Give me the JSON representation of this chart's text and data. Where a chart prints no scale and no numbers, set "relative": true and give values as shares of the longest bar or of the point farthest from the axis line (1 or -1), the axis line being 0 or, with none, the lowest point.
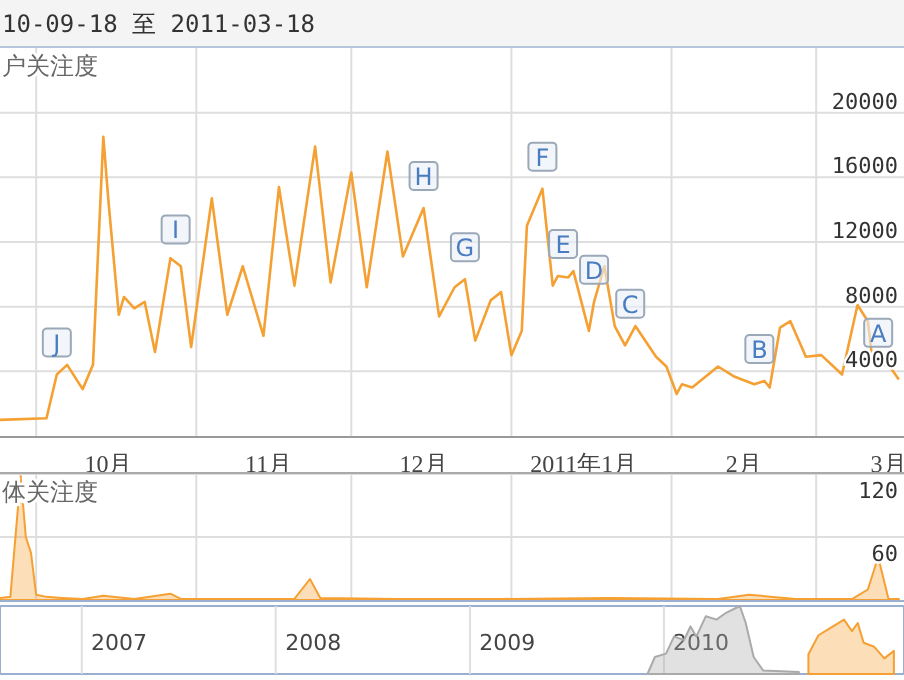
{
  "chart_data": [
    {
      "type": "line",
      "title": "10-09-18 至 2011-03-18",
      "ylabel": "户关注度",
      "color": "#f5a033",
      "x": [
        "2010-09-24",
        "2010-10-03",
        "2010-10-05",
        "2010-10-07",
        "2010-10-10",
        "2010-10-12",
        "2010-10-14",
        "2010-10-15",
        "2010-10-17",
        "2010-10-18",
        "2010-10-20",
        "2010-10-22",
        "2010-10-24",
        "2010-10-27",
        "2010-10-29",
        "2010-10-31",
        "2010-11-04",
        "2010-11-07",
        "2010-11-10",
        "2010-11-14",
        "2010-11-17",
        "2010-11-20",
        "2010-11-24",
        "2010-11-27",
        "2010-12-01",
        "2010-12-04",
        "2010-12-08",
        "2010-12-11",
        "2010-12-15",
        "2010-12-18",
        "2010-12-21",
        "2010-12-23",
        "2010-12-25",
        "2010-12-28",
        "2010-12-30",
        "2011-01-01",
        "2011-01-03",
        "2011-01-04",
        "2011-01-07",
        "2011-01-09",
        "2011-01-10",
        "2011-01-12",
        "2011-01-13",
        "2011-01-16",
        "2011-01-17",
        "2011-01-19",
        "2011-01-21",
        "2011-01-23",
        "2011-01-25",
        "2011-01-29",
        "2011-01-31",
        "2011-02-02",
        "2011-02-03",
        "2011-02-05",
        "2011-02-10",
        "2011-02-13",
        "2011-02-17",
        "2011-02-19",
        "2011-02-20",
        "2011-02-22",
        "2011-02-24",
        "2011-02-27",
        "2011-03-02",
        "2011-03-06",
        "2011-03-09",
        "2011-03-11",
        "2011-03-12",
        "2011-03-15",
        "2011-03-17"
      ],
      "values": [
        1000,
        1100,
        3800,
        4400,
        2900,
        4400,
        18500,
        14500,
        7500,
        8600,
        7900,
        8300,
        5200,
        11000,
        10500,
        5500,
        14700,
        7500,
        10500,
        6200,
        15400,
        9300,
        17900,
        9500,
        16300,
        9200,
        17600,
        11100,
        14100,
        7400,
        9200,
        9700,
        5900,
        8400,
        8900,
        5000,
        6500,
        13000,
        15300,
        9300,
        9900,
        9800,
        10200,
        6500,
        8300,
        10500,
        6800,
        5600,
        6800,
        4900,
        4300,
        2600,
        3200,
        3000,
        4300,
        3700,
        3200,
        3400,
        3000,
        6700,
        7100,
        4900,
        5000,
        3800,
        8100,
        7100,
        4400,
        4400,
        3500
      ],
      "xlim": [
        "2010-09-24",
        "2011-03-18"
      ],
      "xticks": [
        {
          "value": "2010-10-01",
          "label": null
        },
        {
          "value": "2010-11-01",
          "label": null
        },
        {
          "value": "2010-12-01",
          "label": null
        },
        {
          "value": "2011-01-01",
          "label": null
        },
        {
          "value": "2011-02-01",
          "label": null
        },
        {
          "value": "2011-03-01",
          "label": null
        },
        {
          "value": "2010-10-15",
          "label": "10月"
        },
        {
          "value": "2010-11-15",
          "label": "11月"
        },
        {
          "value": "2010-12-15",
          "label": "12月"
        },
        {
          "value": "2011-01-15",
          "label": "2011年1月"
        },
        {
          "value": "2011-02-15",
          "label": "2月"
        },
        {
          "value": "2011-03-15",
          "label": "3月"
        }
      ],
      "ylim": [
        0,
        24000
      ],
      "yticks": [
        4000,
        8000,
        12000,
        16000,
        20000
      ],
      "grid": true,
      "annotations": [
        {
          "text": "J",
          "x": "2010-10-05",
          "y": 3800
        },
        {
          "text": "I",
          "x": "2010-10-28",
          "y": 10800
        },
        {
          "text": "H",
          "x": "2010-12-15",
          "y": 14100
        },
        {
          "text": "G",
          "x": "2010-12-23",
          "y": 9700
        },
        {
          "text": "F",
          "x": "2011-01-07",
          "y": 15300
        },
        {
          "text": "E",
          "x": "2011-01-11",
          "y": 9900
        },
        {
          "text": "D",
          "x": "2011-01-17",
          "y": 8300
        },
        {
          "text": "C",
          "x": "2011-01-24",
          "y": 6200
        },
        {
          "text": "B",
          "x": "2011-02-18",
          "y": 3400
        },
        {
          "text": "A",
          "x": "2011-03-13",
          "y": 4400
        }
      ]
    },
    {
      "type": "area",
      "ylabel": "体关注度",
      "color": "#f5a033",
      "x": [
        "2010-09-24",
        "2010-09-26",
        "2010-09-28",
        "2010-09-29",
        "2010-09-30",
        "2010-10-01",
        "2010-10-03",
        "2010-10-06",
        "2010-10-10",
        "2010-10-14",
        "2010-10-20",
        "2010-10-27",
        "2010-10-29",
        "2010-11-10",
        "2010-11-20",
        "2010-11-23",
        "2010-11-25",
        "2010-12-10",
        "2010-12-30",
        "2011-01-20",
        "2011-02-10",
        "2011-02-16",
        "2011-02-25",
        "2011-03-08",
        "2011-03-11",
        "2011-03-13",
        "2011-03-15",
        "2011-03-17"
      ],
      "values": [
        2,
        3,
        118,
        60,
        45,
        5,
        3,
        2,
        1,
        4,
        1,
        6,
        1,
        1,
        1,
        20,
        2,
        1,
        1,
        2,
        1,
        5,
        1,
        1,
        10,
        41,
        1,
        1
      ],
      "xlim": [
        "2010-09-24",
        "2011-03-18"
      ],
      "xticks": [
        {
          "value": "2010-10-01",
          "label": null
        },
        {
          "value": "2010-11-01",
          "label": null
        },
        {
          "value": "2010-12-01",
          "label": null
        },
        {
          "value": "2011-01-01",
          "label": null
        },
        {
          "value": "2011-02-01",
          "label": null
        },
        {
          "value": "2011-03-01",
          "label": null
        }
      ],
      "ylim": [
        0,
        120
      ],
      "yticks": [
        60,
        120
      ],
      "grid": true,
      "tick_labels": "y"
    },
    {
      "type": "area",
      "relative": true,
      "series": [
        {
          "color": "#aaaaaa",
          "x": [
            "2009-12-01",
            "2009-12-15",
            "2010-01-05",
            "2010-01-20",
            "2010-02-08",
            "2010-02-20",
            "2010-03-03",
            "2010-03-21",
            "2010-04-10",
            "2010-04-28",
            "2010-05-24",
            "2010-06-04",
            "2010-06-19",
            "2010-07-07",
            "2010-09-12"
          ],
          "values": [
            0,
            0.25,
            0.3,
            0.55,
            0.5,
            0.7,
            0.55,
            0.85,
            0.8,
            0.9,
            1,
            0.75,
            0.25,
            0.05,
            0.03
          ]
        },
        {
          "color": "#f5a033",
          "x": [
            "2010-09-30",
            "2010-10-19",
            "2010-11-13",
            "2010-12-06",
            "2010-12-21",
            "2011-01-01",
            "2011-01-12",
            "2011-02-01",
            "2011-02-20",
            "2011-03-10"
          ],
          "values": [
            0.29,
            0.57,
            0.69,
            0.8,
            0.63,
            0.75,
            0.46,
            0.4,
            0.23,
            0.34
          ]
        }
      ],
      "xlim": [
        "2006-07-31",
        "2011-03-29"
      ],
      "xticks": [
        {
          "value": "2007-01-01",
          "label": null
        },
        {
          "value": "2008-01-01",
          "label": null
        },
        {
          "value": "2009-01-01",
          "label": null
        },
        {
          "value": "2010-01-01",
          "label": null
        },
        {
          "value": "2007-03-12",
          "label": "2007"
        },
        {
          "value": "2008-03-12",
          "label": "2008"
        },
        {
          "value": "2009-03-12",
          "label": "2009"
        },
        {
          "value": "2010-03-12",
          "label": "2010"
        }
      ],
      "grid": "x",
      "tick_labels": "x"
    }
  ]
}
